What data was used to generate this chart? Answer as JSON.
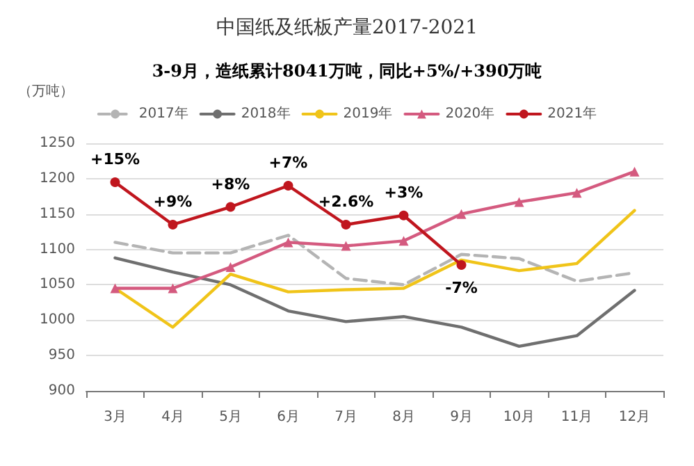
{
  "chart_data": {
    "type": "line",
    "title": "中国纸及纸板产量2017-2021",
    "subtitle": "3-9月，造纸累计8041万吨，同比+5%/+390万吨",
    "ylabel": "（万吨）",
    "categories": [
      "3月",
      "4月",
      "5月",
      "6月",
      "7月",
      "8月",
      "9月",
      "10月",
      "11月",
      "12月"
    ],
    "series": [
      {
        "name": "2017年",
        "color": "#b4b4b4",
        "line_style": "dashed",
        "marker": "none",
        "values": [
          1110,
          1095,
          1095,
          1120,
          1059,
          1050,
          1093,
          1087,
          1055,
          1067
        ]
      },
      {
        "name": "2018年",
        "color": "#6f6f6f",
        "marker": "none",
        "values": [
          1088,
          1068,
          1050,
          1013,
          998,
          1005,
          990,
          963,
          978,
          1042
        ]
      },
      {
        "name": "2019年",
        "color": "#f0c419",
        "marker": "none",
        "values": [
          1045,
          990,
          1065,
          1040,
          1043,
          1045,
          1085,
          1070,
          1080,
          1155
        ]
      },
      {
        "name": "2020年",
        "color": "#d45a7f",
        "marker": "triangle",
        "values": [
          1045,
          1045,
          1075,
          1110,
          1105,
          1112,
          1150,
          1167,
          1180,
          1210
        ]
      },
      {
        "name": "2021年",
        "color": "#c0161e",
        "marker": "circle",
        "values": [
          1195,
          1135,
          1160,
          1190,
          1135,
          1148,
          1078,
          null,
          null,
          null
        ]
      }
    ],
    "annotations": [
      {
        "text": "+15%",
        "x": "3月",
        "y": 1195
      },
      {
        "text": "+9%",
        "x": "4月",
        "y": 1135
      },
      {
        "text": "+8%",
        "x": "5月",
        "y": 1160
      },
      {
        "text": "+7%",
        "x": "6月",
        "y": 1190
      },
      {
        "text": "+2.6%",
        "x": "7月",
        "y": 1135
      },
      {
        "text": "+3%",
        "x": "8月",
        "y": 1148
      },
      {
        "text": "-7%",
        "x": "9月",
        "y": 1078
      }
    ],
    "ylim": [
      900,
      1250
    ],
    "yticks": [
      900,
      950,
      1000,
      1050,
      1100,
      1150,
      1200,
      1250
    ],
    "grid": "y",
    "legend": "top"
  }
}
